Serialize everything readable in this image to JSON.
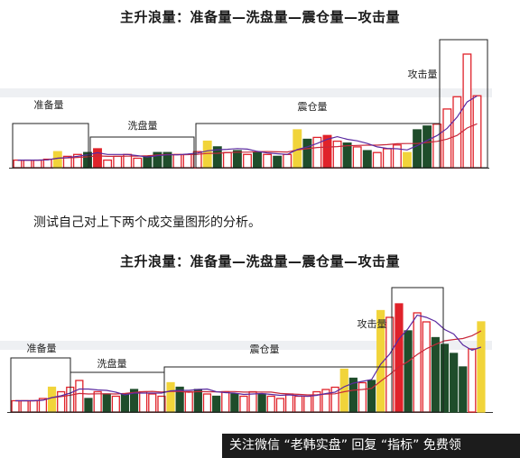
{
  "title_top": "主升浪量：准备量—洗盘量—震仓量—攻击量",
  "caption": "测试自己对上下两个成交量图形的分析。",
  "title_bottom": "主升浪量：准备量—洗盘量—震仓量—攻击量",
  "watermark": "关注微信 “老韩实盘” 回复 “指标” 免费领",
  "colors": {
    "up": "#e0222a",
    "down": "#1f4d2b",
    "yellow": "#f1d43a",
    "ma_short": "#5a2aa0",
    "ma_long": "#c8283a"
  },
  "chart_data": [
    {
      "type": "bar",
      "title": "主升浪量：准备量—洗盘量—震仓量—攻击量",
      "regions": [
        "准备量",
        "洗盘量",
        "震仓量",
        "攻击量"
      ],
      "bars": [
        {
          "v": 8,
          "c": "up",
          "r": 0
        },
        {
          "v": 8,
          "c": "up",
          "r": 0
        },
        {
          "v": 8,
          "c": "up",
          "r": 0
        },
        {
          "v": 9,
          "c": "up",
          "r": 0
        },
        {
          "v": 17,
          "c": "yellow",
          "r": 0
        },
        {
          "v": 12,
          "c": "up",
          "r": 0
        },
        {
          "v": 14,
          "c": "up",
          "r": 0
        },
        {
          "v": 16,
          "c": "down",
          "r": 0
        },
        {
          "v": 20,
          "c": "upfill",
          "r": 0
        },
        {
          "v": 8,
          "c": "up",
          "r": 1
        },
        {
          "v": 12,
          "c": "up",
          "r": 1
        },
        {
          "v": 14,
          "c": "up",
          "r": 1
        },
        {
          "v": 10,
          "c": "up",
          "r": 1
        },
        {
          "v": 12,
          "c": "down",
          "r": 1
        },
        {
          "v": 16,
          "c": "down",
          "r": 1
        },
        {
          "v": 16,
          "c": "down",
          "r": 1
        },
        {
          "v": 14,
          "c": "up",
          "r": 1
        },
        {
          "v": 14,
          "c": "up",
          "r": 1
        },
        {
          "v": 17,
          "c": "up",
          "r": 1
        },
        {
          "v": 28,
          "c": "yellow",
          "r": 2
        },
        {
          "v": 22,
          "c": "down",
          "r": 2
        },
        {
          "v": 16,
          "c": "up",
          "r": 2
        },
        {
          "v": 18,
          "c": "down",
          "r": 2
        },
        {
          "v": 14,
          "c": "up",
          "r": 2
        },
        {
          "v": 16,
          "c": "down",
          "r": 2
        },
        {
          "v": 14,
          "c": "up",
          "r": 2
        },
        {
          "v": 12,
          "c": "down",
          "r": 2
        },
        {
          "v": 14,
          "c": "up",
          "r": 2
        },
        {
          "v": 40,
          "c": "yellow",
          "r": 2
        },
        {
          "v": 30,
          "c": "down",
          "r": 2
        },
        {
          "v": 32,
          "c": "up",
          "r": 2
        },
        {
          "v": 34,
          "c": "upfill",
          "r": 2
        },
        {
          "v": 28,
          "c": "up",
          "r": 2
        },
        {
          "v": 26,
          "c": "down",
          "r": 2
        },
        {
          "v": 22,
          "c": "up",
          "r": 2
        },
        {
          "v": 18,
          "c": "down",
          "r": 2
        },
        {
          "v": 16,
          "c": "up",
          "r": 2
        },
        {
          "v": 20,
          "c": "up",
          "r": 2
        },
        {
          "v": 24,
          "c": "up",
          "r": 2
        },
        {
          "v": 16,
          "c": "yellow",
          "r": 2
        },
        {
          "v": 40,
          "c": "down",
          "r": 2
        },
        {
          "v": 44,
          "c": "down",
          "r": 2
        },
        {
          "v": 46,
          "c": "up",
          "r": 3
        },
        {
          "v": 62,
          "c": "up",
          "r": 3
        },
        {
          "v": 75,
          "c": "up",
          "r": 3
        },
        {
          "v": 120,
          "c": "up",
          "r": 3
        },
        {
          "v": 76,
          "c": "up",
          "r": 3
        }
      ]
    },
    {
      "type": "bar",
      "title": "主升浪量：准备量—洗盘量—震仓量—攻击量",
      "regions": [
        "准备量",
        "洗盘量",
        "震仓量",
        "攻击量"
      ],
      "bars": [
        {
          "v": 10,
          "c": "up",
          "r": 0
        },
        {
          "v": 10,
          "c": "up",
          "r": 0
        },
        {
          "v": 10,
          "c": "up",
          "r": 0
        },
        {
          "v": 12,
          "c": "up",
          "r": 0
        },
        {
          "v": 22,
          "c": "yellow",
          "r": 0
        },
        {
          "v": 18,
          "c": "up",
          "r": 0
        },
        {
          "v": 22,
          "c": "up",
          "r": 0
        },
        {
          "v": 28,
          "c": "up",
          "r": 0
        },
        {
          "v": 12,
          "c": "down",
          "r": 1
        },
        {
          "v": 18,
          "c": "up",
          "r": 1
        },
        {
          "v": 16,
          "c": "down",
          "r": 1
        },
        {
          "v": 14,
          "c": "up",
          "r": 1
        },
        {
          "v": 16,
          "c": "down",
          "r": 1
        },
        {
          "v": 20,
          "c": "down",
          "r": 1
        },
        {
          "v": 18,
          "c": "up",
          "r": 1
        },
        {
          "v": 16,
          "c": "up",
          "r": 1
        },
        {
          "v": 14,
          "c": "up",
          "r": 1
        },
        {
          "v": 26,
          "c": "yellow",
          "r": 2
        },
        {
          "v": 22,
          "c": "down",
          "r": 2
        },
        {
          "v": 18,
          "c": "up",
          "r": 2
        },
        {
          "v": 20,
          "c": "down",
          "r": 2
        },
        {
          "v": 16,
          "c": "up",
          "r": 2
        },
        {
          "v": 14,
          "c": "down",
          "r": 2
        },
        {
          "v": 18,
          "c": "up",
          "r": 2
        },
        {
          "v": 16,
          "c": "down",
          "r": 2
        },
        {
          "v": 14,
          "c": "up",
          "r": 2
        },
        {
          "v": 18,
          "c": "up",
          "r": 2
        },
        {
          "v": 16,
          "c": "down",
          "r": 2
        },
        {
          "v": 14,
          "c": "up",
          "r": 2
        },
        {
          "v": 12,
          "c": "up",
          "r": 2
        },
        {
          "v": 16,
          "c": "up",
          "r": 2
        },
        {
          "v": 14,
          "c": "up",
          "r": 2
        },
        {
          "v": 14,
          "c": "up",
          "r": 2
        },
        {
          "v": 18,
          "c": "up",
          "r": 2
        },
        {
          "v": 20,
          "c": "up",
          "r": 2
        },
        {
          "v": 22,
          "c": "up",
          "r": 2
        },
        {
          "v": 38,
          "c": "yellow",
          "r": 2
        },
        {
          "v": 30,
          "c": "down",
          "r": 2
        },
        {
          "v": 26,
          "c": "up",
          "r": 2
        },
        {
          "v": 28,
          "c": "down",
          "r": 2
        },
        {
          "v": 90,
          "c": "yellow",
          "r": 3
        },
        {
          "v": 84,
          "c": "up",
          "r": 3
        },
        {
          "v": 96,
          "c": "upfill",
          "r": 3
        },
        {
          "v": 72,
          "c": "down",
          "r": 3
        },
        {
          "v": 88,
          "c": "up",
          "r": 3
        },
        {
          "v": 80,
          "c": "up",
          "r": 3
        },
        {
          "v": 66,
          "c": "down",
          "r": 3
        },
        {
          "v": 60,
          "c": "down",
          "r": 3
        },
        {
          "v": 52,
          "c": "down",
          "r": 3
        },
        {
          "v": 40,
          "c": "down",
          "r": 3
        },
        {
          "v": 56,
          "c": "up",
          "r": 3
        },
        {
          "v": 80,
          "c": "yellow",
          "r": 3
        }
      ]
    }
  ]
}
